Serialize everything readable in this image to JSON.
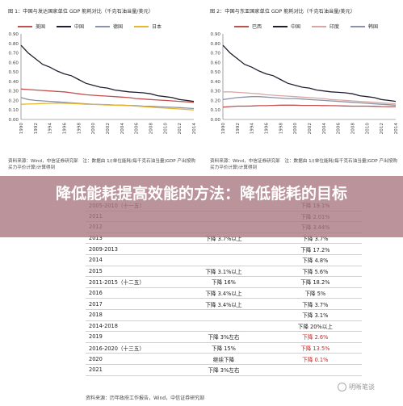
{
  "chart_data": [
    {
      "type": "line",
      "title": "图 1：中国与发达国家单位 GDP 能耗对比（千克石油当量/美元）",
      "x": [
        1990,
        1991,
        1992,
        1993,
        1994,
        1995,
        1996,
        1997,
        1998,
        1999,
        2000,
        2001,
        2002,
        2003,
        2004,
        2005,
        2006,
        2007,
        2008,
        2009,
        2010,
        2011,
        2012,
        2013,
        2014
      ],
      "x_tick_labels": [
        "1990",
        "1992",
        "1994",
        "1996",
        "1998",
        "2000",
        "2002",
        "2004",
        "2006",
        "2008",
        "2010",
        "2012",
        "2014"
      ],
      "ylim": [
        0,
        0.9
      ],
      "y_tick_labels": [
        "0.00",
        "0.10",
        "0.20",
        "0.30",
        "0.40",
        "0.50",
        "0.60",
        "0.70",
        "0.80",
        "0.90"
      ],
      "legend_position": "top",
      "series": [
        {
          "name": "美国",
          "color": "#c0504d",
          "values": [
            0.32,
            0.315,
            0.31,
            0.305,
            0.3,
            0.295,
            0.29,
            0.28,
            0.27,
            0.26,
            0.255,
            0.25,
            0.245,
            0.24,
            0.235,
            0.23,
            0.22,
            0.215,
            0.21,
            0.205,
            0.2,
            0.195,
            0.19,
            0.185,
            0.18
          ]
        },
        {
          "name": "中国",
          "color": "#1f1f2e",
          "values": [
            0.78,
            0.7,
            0.64,
            0.58,
            0.55,
            0.51,
            0.48,
            0.46,
            0.42,
            0.38,
            0.36,
            0.34,
            0.33,
            0.31,
            0.3,
            0.29,
            0.285,
            0.28,
            0.27,
            0.25,
            0.24,
            0.23,
            0.21,
            0.2,
            0.19
          ]
        },
        {
          "name": "德国",
          "color": "#8a93a8",
          "values": [
            0.23,
            0.21,
            0.2,
            0.195,
            0.19,
            0.185,
            0.18,
            0.175,
            0.17,
            0.165,
            0.16,
            0.158,
            0.155,
            0.152,
            0.15,
            0.148,
            0.145,
            0.14,
            0.138,
            0.135,
            0.132,
            0.128,
            0.125,
            0.12,
            0.115
          ]
        },
        {
          "name": "日本",
          "color": "#e8b52e",
          "values": [
            0.16,
            0.162,
            0.165,
            0.168,
            0.17,
            0.172,
            0.17,
            0.168,
            0.165,
            0.16,
            0.158,
            0.155,
            0.152,
            0.15,
            0.148,
            0.145,
            0.14,
            0.135,
            0.13,
            0.125,
            0.12,
            0.115,
            0.11,
            0.105,
            0.1
          ]
        }
      ],
      "source": "资料来源：Wind，中信证券研究部　注：数据由 1/(单位能耗(每千克石油当量)GDP 产出按购买力平价计算)计算得到"
    },
    {
      "type": "line",
      "title": "图 2：中国与东亚国家单位 GDP 能耗对比（千克石油当量/美元）",
      "x": [
        1990,
        1991,
        1992,
        1993,
        1994,
        1995,
        1996,
        1997,
        1998,
        1999,
        2000,
        2001,
        2002,
        2003,
        2004,
        2005,
        2006,
        2007,
        2008,
        2009,
        2010,
        2011,
        2012,
        2013,
        2014
      ],
      "x_tick_labels": [
        "1990",
        "1992",
        "1994",
        "1996",
        "1998",
        "2000",
        "2002",
        "2004",
        "2006",
        "2008",
        "2010",
        "2012",
        "2014"
      ],
      "ylim": [
        0,
        0.9
      ],
      "y_tick_labels": [
        "0.00",
        "0.10",
        "0.20",
        "0.30",
        "0.40",
        "0.50",
        "0.60",
        "0.70",
        "0.80",
        "0.90"
      ],
      "legend_position": "top",
      "series": [
        {
          "name": "巴西",
          "color": "#c0504d",
          "values": [
            0.13,
            0.135,
            0.14,
            0.14,
            0.142,
            0.145,
            0.145,
            0.148,
            0.15,
            0.15,
            0.15,
            0.148,
            0.148,
            0.148,
            0.146,
            0.145,
            0.144,
            0.142,
            0.14,
            0.14,
            0.14,
            0.138,
            0.136,
            0.135,
            0.135
          ]
        },
        {
          "name": "中国",
          "color": "#1f1f2e",
          "values": [
            0.78,
            0.7,
            0.64,
            0.58,
            0.55,
            0.51,
            0.48,
            0.46,
            0.42,
            0.38,
            0.36,
            0.34,
            0.33,
            0.31,
            0.3,
            0.29,
            0.285,
            0.28,
            0.27,
            0.25,
            0.24,
            0.23,
            0.21,
            0.2,
            0.19
          ]
        },
        {
          "name": "印度",
          "color": "#d8a7a5",
          "values": [
            0.29,
            0.29,
            0.285,
            0.28,
            0.275,
            0.27,
            0.26,
            0.255,
            0.25,
            0.245,
            0.24,
            0.235,
            0.23,
            0.225,
            0.22,
            0.21,
            0.205,
            0.2,
            0.195,
            0.19,
            0.185,
            0.18,
            0.175,
            0.17,
            0.165
          ]
        },
        {
          "name": "韩国",
          "color": "#8a93a8",
          "values": [
            0.21,
            0.22,
            0.23,
            0.235,
            0.24,
            0.24,
            0.235,
            0.23,
            0.225,
            0.22,
            0.22,
            0.215,
            0.21,
            0.205,
            0.2,
            0.195,
            0.19,
            0.185,
            0.18,
            0.175,
            0.17,
            0.165,
            0.16,
            0.155,
            0.15
          ]
        }
      ],
      "source": "资料来源：Wind，中信证券研究部　注：数据由 1/(单位能耗(每千克石油当量)GDP 产出按购买力平价计算)计算得到"
    },
    {
      "type": "table",
      "rows": [
        [
          "2005-2010（十一五）",
          "",
          "下降 19.1%"
        ],
        [
          "2011",
          "",
          "下降 2.01%"
        ],
        [
          "2012",
          "",
          "下降 3.44%"
        ],
        [
          "2013",
          "下降 3.7%以上",
          "下降 3.7%"
        ],
        [
          "2009-2013",
          "",
          "下降 17.2%"
        ],
        [
          "2014",
          "",
          "下降 4.8%"
        ],
        [
          "2015",
          "下降 3.1%以上",
          "下降 5.6%"
        ],
        [
          "2011-2015（十二五）",
          "下降 16%",
          "下降 18.2%"
        ],
        [
          "2016",
          "下降 3.4%以上",
          "下降 5%"
        ],
        [
          "2017",
          "下降 3.4%以上",
          "下降 3.7%"
        ],
        [
          "2018",
          "",
          "下降 3.1%"
        ],
        [
          "2014-2018",
          "",
          "下降 20%以上"
        ],
        [
          "2019",
          "下降 3%左右",
          "下降 2.6%"
        ],
        [
          "2016-2020（十三五）",
          "下降 15%",
          "下降 13.5%"
        ],
        [
          "2020",
          "继续下降",
          "下降 0.1%"
        ],
        [
          "2021",
          "下降 3%左右",
          ""
        ]
      ],
      "red_cells": [
        [
          12,
          2
        ],
        [
          13,
          2
        ],
        [
          14,
          2
        ]
      ],
      "source": "资料来源：历年政府工作报告，Wind，中信证券研究部"
    }
  ],
  "banner": {
    "title": "降低能耗提高效能的方法：降低能耗的目标"
  },
  "watermark": {
    "text": "明晰笔谈"
  }
}
